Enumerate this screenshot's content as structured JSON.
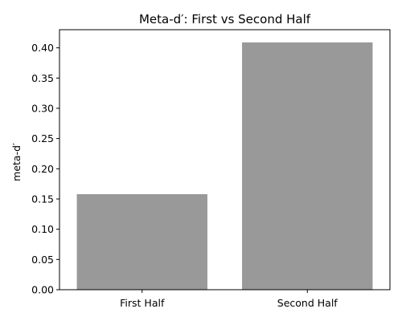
{
  "chart_data": {
    "type": "bar",
    "title": "Meta-d′: First vs Second Half",
    "xlabel": "",
    "ylabel": "meta-d′",
    "categories": [
      "First Half",
      "Second Half"
    ],
    "values": [
      0.158,
      0.409
    ],
    "ylim": [
      0,
      0.43
    ],
    "yticks": [
      "0.00",
      "0.05",
      "0.10",
      "0.15",
      "0.20",
      "0.25",
      "0.30",
      "0.35",
      "0.40"
    ],
    "bar_color": "#999999",
    "grid": false,
    "legend": "none"
  }
}
